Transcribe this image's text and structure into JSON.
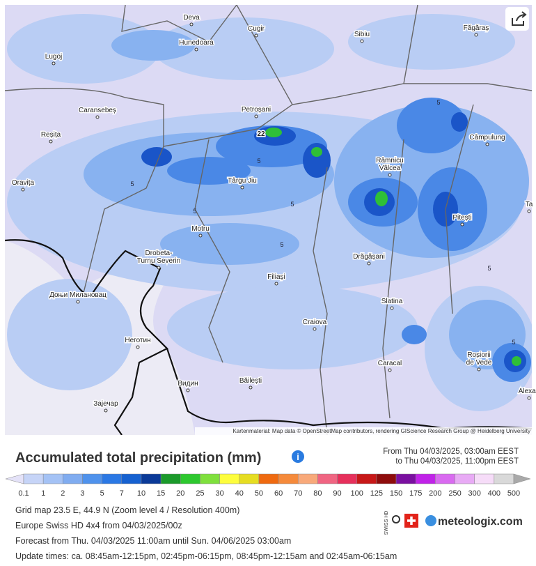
{
  "map": {
    "places": [
      "Deva",
      "Cugir",
      "Sibiu",
      "Făgăraș",
      "Lugoj",
      "Hunedoara",
      "Caransebeș",
      "Petroșani",
      "Reșița",
      "Câmpulung",
      [
        "Râmnicu",
        "Vâlcea"
      ],
      "Oravița",
      "Târgu Jiu",
      "Pitești",
      "Motru",
      [
        "Drobeta-",
        "Turnu Severin"
      ],
      "Drăgășani",
      "Filiași",
      "Доњи Милановац",
      "Slatina",
      "Craiova",
      "Неготин",
      [
        "Roșiorii",
        "de Vede"
      ],
      "Caracal",
      "Băilești",
      "Видин",
      "Зајечар",
      "Alexan",
      "Ta"
    ],
    "peak_label": "22",
    "contour_label": "5",
    "attribution": "Kartenmaterial: Map data © OpenStreetMap contributors, rendering GIScience Research Group @ Heidelberg University"
  },
  "header": {
    "title": "Accumulated total precipitation (mm)",
    "from": "From Thu 04/03/2025, 03:00am EEST",
    "to": "to Thu 04/03/2025, 11:00pm EEST"
  },
  "legend": {
    "labels": [
      0.1,
      1,
      2,
      3,
      5,
      7,
      10,
      15,
      20,
      25,
      30,
      40,
      50,
      60,
      70,
      80,
      90,
      100,
      125,
      150,
      175,
      200,
      250,
      300,
      400,
      500
    ],
    "under_color": "#e4e2f8",
    "over_color": "#a9a9a9",
    "colors": [
      "#c6d4f7",
      "#a4c2f5",
      "#80acf0",
      "#4f92ec",
      "#2b78e4",
      "#1661d0",
      "#0b3a98",
      "#1b9a2b",
      "#2ec82f",
      "#7fe03d",
      "#fdfd3d",
      "#e6dd22",
      "#ef6a10",
      "#f58a3b",
      "#f8a97a",
      "#f06582",
      "#e6305b",
      "#c71818",
      "#8e0c0c",
      "#7a10a0",
      "#c022e8",
      "#d96af0",
      "#e8aaf5",
      "#f6dcf8",
      "#d9d9d9"
    ]
  },
  "footer": {
    "lines": [
      "Grid map 23.5 E, 44.9 N (Zoom level 4 / Resolution 400m)",
      "Europe Swiss HD 4x4 from 04/03/2025/00z",
      "Forecast from Thu. 04/03/2025 11:00am until Sun. 04/06/2025 03:00am",
      "Update times: ca. 08:45am-12:15pm, 02:45pm-06:15pm, 08:45pm-12:15am and 02:45am-06:15am"
    ],
    "badge": "SWISS HD",
    "logo": "meteologix.com"
  }
}
